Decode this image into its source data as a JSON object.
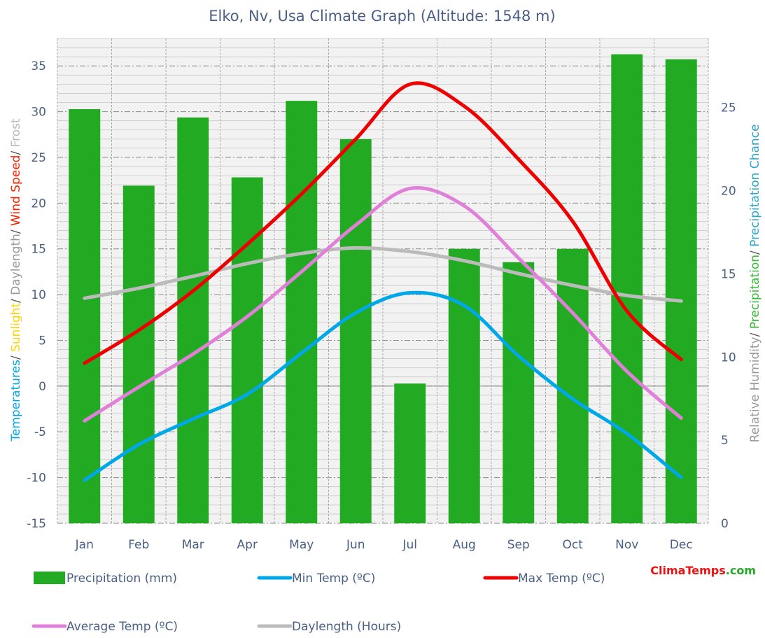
{
  "chart_data": {
    "type": "bar+line",
    "title": "Elko, Nv, Usa Climate Graph (Altitude: 1548 m)",
    "categories": [
      "Jan",
      "Feb",
      "Mar",
      "Apr",
      "May",
      "Jun",
      "Jul",
      "Aug",
      "Sep",
      "Oct",
      "Nov",
      "Dec"
    ],
    "left_axis": {
      "label_parts": [
        {
          "text": "Temperatures",
          "color": "#00a8e8"
        },
        {
          "text": "/ ",
          "color": "#555555"
        },
        {
          "text": "Sunlight",
          "color": "#ffd400"
        },
        {
          "text": "/ ",
          "color": "#555555"
        },
        {
          "text": "Daylength",
          "color": "#999999"
        },
        {
          "text": "/ ",
          "color": "#555555"
        },
        {
          "text": "Wind Speed",
          "color": "#ff2200"
        },
        {
          "text": "/ ",
          "color": "#555555"
        },
        {
          "text": "Frost",
          "color": "#bbbbbb"
        }
      ],
      "ylim": [
        -15,
        38
      ],
      "ticks": [
        -15,
        -10,
        -5,
        0,
        5,
        10,
        15,
        20,
        25,
        30,
        35
      ]
    },
    "right_axis": {
      "label_parts": [
        {
          "text": "Relative Humidity",
          "color": "#999999"
        },
        {
          "text": "/ ",
          "color": "#555555"
        },
        {
          "text": "Precipitation",
          "color": "#33bb33"
        },
        {
          "text": "/ ",
          "color": "#555555"
        },
        {
          "text": "Precipitation Chance",
          "color": "#2aa6c8"
        }
      ],
      "ylim": [
        0,
        29.15
      ],
      "ticks": [
        0,
        5,
        10,
        15,
        20,
        25
      ]
    },
    "series": [
      {
        "name": "Precipitation (mm)",
        "kind": "bar",
        "axis": "right",
        "color": "#22aa22",
        "values": [
          24.9,
          20.3,
          24.4,
          20.8,
          25.4,
          23.1,
          8.4,
          16.5,
          15.7,
          16.5,
          28.2,
          27.9
        ]
      },
      {
        "name": "Min Temp (ºC)",
        "kind": "line",
        "axis": "left",
        "color": "#00a8e8",
        "values": [
          -10.3,
          -6.4,
          -3.6,
          -0.9,
          3.6,
          8.0,
          10.2,
          8.8,
          3.3,
          -1.4,
          -5.2,
          -10.0
        ]
      },
      {
        "name": "Max Temp (ºC)",
        "kind": "line",
        "axis": "left",
        "color": "#ee0000",
        "values": [
          2.5,
          6.1,
          10.4,
          15.5,
          21.0,
          27.0,
          33.0,
          30.6,
          24.8,
          18.0,
          8.2,
          2.9
        ]
      },
      {
        "name": "Average Temp (ºC)",
        "kind": "line",
        "axis": "left",
        "color": "#e080d8",
        "values": [
          -3.8,
          -0.1,
          3.5,
          7.6,
          12.5,
          17.6,
          21.6,
          19.7,
          14.0,
          8.0,
          1.6,
          -3.5
        ]
      },
      {
        "name": "Daylength (Hours)",
        "kind": "line",
        "axis": "left",
        "color": "#bbbbbb",
        "values": [
          9.6,
          10.7,
          12.0,
          13.4,
          14.5,
          15.1,
          14.7,
          13.7,
          12.3,
          11.0,
          9.9,
          9.3
        ]
      }
    ],
    "grid": true,
    "legend_position": "bottom"
  },
  "brand": {
    "part1": "Clima",
    "part2": "Temps",
    "part3": ".com"
  }
}
